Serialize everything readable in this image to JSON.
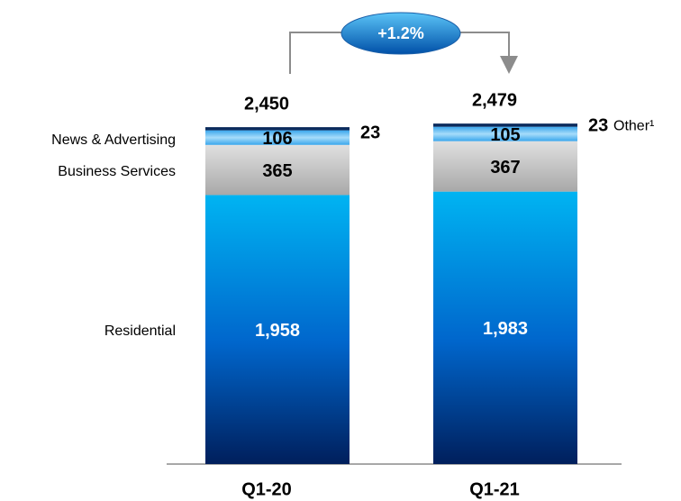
{
  "chart_data": {
    "type": "stacked_bar",
    "categories": [
      "Q1-20",
      "Q1-21"
    ],
    "series": [
      {
        "name": "Residential",
        "color": "#0070c0",
        "values": [
          1958,
          1983
        ],
        "value_labels": [
          "1,958",
          "1,983"
        ]
      },
      {
        "name": "Business Services",
        "color": "#bfbfbf",
        "values": [
          365,
          367
        ]
      },
      {
        "name": "News & Advertising",
        "color": "#66c2f5",
        "values": [
          106,
          105
        ]
      },
      {
        "name": "Other¹",
        "color": "#0a2a5c",
        "values": [
          23,
          23
        ]
      }
    ],
    "totals": [
      2450,
      2479
    ],
    "total_labels": [
      "2,450",
      "2,479"
    ],
    "annotation": "+1.2%"
  }
}
